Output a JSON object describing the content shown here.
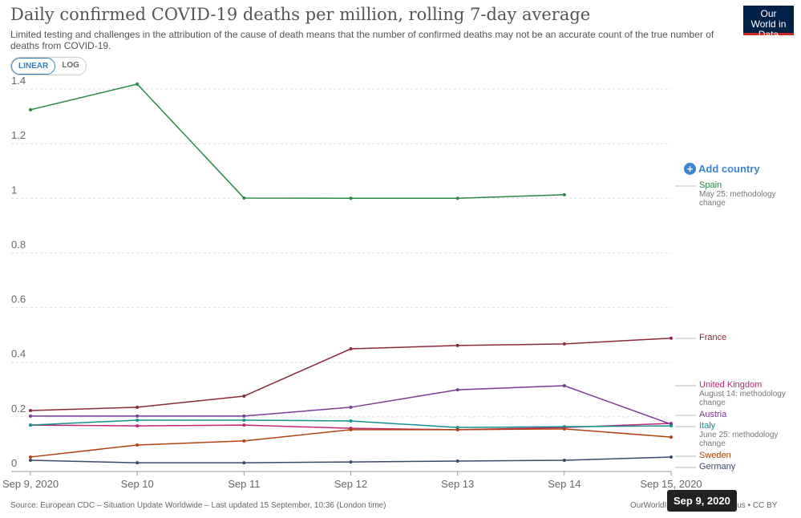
{
  "header": {
    "title": "Daily confirmed COVID-19 deaths per million, rolling 7-day average",
    "subtitle": "Limited testing and challenges in the attribution of the cause of death means that the number of confirmed deaths may not be an accurate count of the true number of deaths from COVID-19.",
    "logo": "Our World in Data",
    "buttons": [
      "LINEAR",
      "LOG"
    ],
    "add_country": "Add country"
  },
  "chart_data": {
    "type": "line",
    "categories": [
      "Sep 9, 2020",
      "Sep 10",
      "Sep 11",
      "Sep 12",
      "Sep 13",
      "Sep 14",
      "Sep 15, 2020"
    ],
    "ylim": [
      0,
      1.4
    ],
    "yticks": [
      0,
      0.2,
      0.4,
      0.6,
      0.8,
      1,
      1.2,
      1.4
    ],
    "grid": true,
    "series": [
      {
        "name": "Spain",
        "color": "#2a8a45",
        "note": "May 25: methodology change",
        "values": [
          1.324,
          1.418,
          1.001,
          1.0,
          1.0,
          1.013,
          null
        ]
      },
      {
        "name": "France",
        "color": "#8c2a3a",
        "values": [
          0.223,
          0.235,
          0.276,
          0.449,
          0.461,
          0.467,
          0.488
        ]
      },
      {
        "name": "United Kingdom",
        "color": "#c1257a",
        "note": "August 14: methodology change",
        "values": [
          0.17,
          0.167,
          0.17,
          0.158,
          0.153,
          0.161,
          0.176
        ]
      },
      {
        "name": "Austria",
        "color": "#7a3a96",
        "values": [
          0.203,
          0.203,
          0.203,
          0.235,
          0.299,
          0.314,
          0.173
        ]
      },
      {
        "name": "Italy",
        "color": "#16928e",
        "note": "June 25: methodology change",
        "values": [
          0.17,
          0.188,
          0.188,
          0.185,
          0.161,
          0.164,
          0.167
        ]
      },
      {
        "name": "Sweden",
        "color": "#b3420f",
        "values": [
          0.053,
          0.097,
          0.112,
          0.153,
          0.153,
          0.156,
          0.126
        ]
      },
      {
        "name": "Germany",
        "color": "#3a4a6a",
        "values": [
          0.041,
          0.032,
          0.032,
          0.035,
          0.038,
          0.041,
          0.053
        ]
      }
    ]
  },
  "footer": {
    "source": "Source: European CDC – Situation Update Worldwide – Last updated 15 September, 10:36 (London time)",
    "license": "OurWorldInData.org/coronavirus • CC BY",
    "tooltip": "Sep 9, 2020"
  }
}
